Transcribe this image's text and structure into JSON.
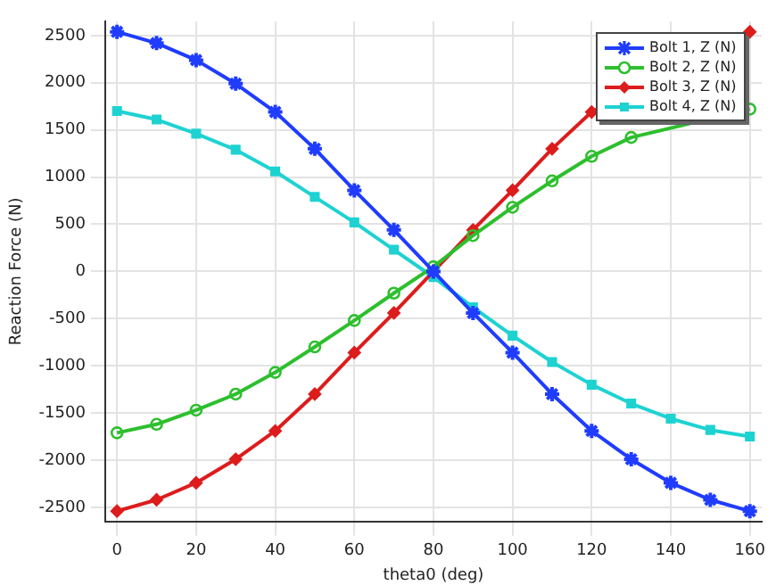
{
  "chart_data": {
    "type": "line",
    "xlabel": "theta0 (deg)",
    "ylabel": "Reaction Force (N)",
    "x": [
      0,
      10,
      20,
      30,
      40,
      50,
      60,
      70,
      80,
      90,
      100,
      110,
      120,
      130,
      140,
      150,
      160
    ],
    "xlim": [
      -3,
      163
    ],
    "xticks": [
      0,
      20,
      40,
      60,
      80,
      100,
      120,
      140,
      160
    ],
    "ylim": [
      -2650,
      2650
    ],
    "yticks": [
      -2500,
      -2000,
      -1500,
      -1000,
      -500,
      0,
      500,
      1000,
      1500,
      2000,
      2500
    ],
    "grid": true,
    "legend": "top right",
    "line_style": "solid",
    "series": [
      {
        "name": "Bolt 1, Z (N)",
        "color": "#1f3cff",
        "marker": "cross",
        "values": [
          2540,
          2420,
          2240,
          1990,
          1690,
          1300,
          860,
          440,
          0,
          -440,
          -860,
          -1300,
          -1690,
          -1990,
          -2240,
          -2420,
          -2540
        ]
      },
      {
        "name": "Bolt 2, Z (N)",
        "color": "#2dbf2d",
        "marker": "circle",
        "values": [
          -1710,
          -1620,
          -1470,
          -1300,
          -1070,
          -800,
          -520,
          -230,
          50,
          380,
          680,
          960,
          1220,
          1420,
          null,
          null,
          1720
        ]
      },
      {
        "name": "Bolt 3, Z (N)",
        "color": "#dd1c1c",
        "marker": "diamond",
        "values": [
          -2540,
          -2420,
          -2240,
          -1990,
          -1690,
          -1300,
          -860,
          -440,
          0,
          440,
          860,
          1300,
          1690,
          null,
          null,
          null,
          2540
        ]
      },
      {
        "name": "Bolt 4, Z (N)",
        "color": "#1ed2d2",
        "marker": "square",
        "values": [
          1700,
          1610,
          1460,
          1290,
          1060,
          790,
          520,
          230,
          -60,
          -380,
          -680,
          -960,
          -1200,
          -1400,
          -1560,
          -1680,
          -1750
        ]
      }
    ]
  }
}
